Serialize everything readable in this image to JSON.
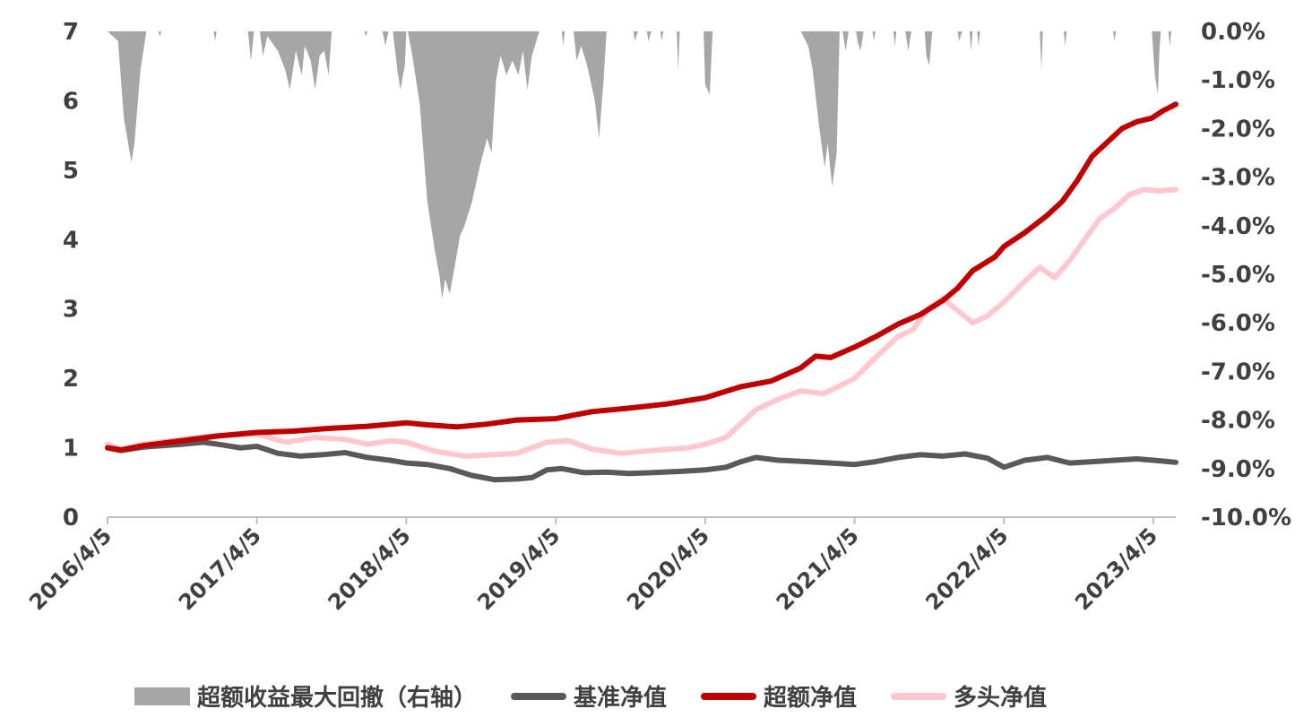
{
  "chart_data": {
    "type": "line",
    "x_ticks": [
      "2016/4/5",
      "2017/4/5",
      "2018/4/5",
      "2019/4/5",
      "2020/4/5",
      "2021/4/5",
      "2022/4/5",
      "2023/4/5"
    ],
    "x_range": [
      2016.26,
      2023.41
    ],
    "left_axis": {
      "ticks": [
        "0",
        "1",
        "2",
        "3",
        "4",
        "5",
        "6",
        "7"
      ],
      "range": [
        0,
        7
      ]
    },
    "right_axis": {
      "ticks": [
        "0.0%",
        "-1.0%",
        "-2.0%",
        "-3.0%",
        "-4.0%",
        "-5.0%",
        "-6.0%",
        "-7.0%",
        "-8.0%",
        "-9.0%",
        "-10.0%"
      ],
      "range": [
        -10,
        0
      ]
    },
    "legend_position": "bottom",
    "series": [
      {
        "name": "超额收益最大回撤（右轴）",
        "type": "area",
        "axis": "right",
        "color": "#a6a6a6",
        "points": [
          [
            2016.26,
            0
          ],
          [
            2016.33,
            -0.2
          ],
          [
            2016.37,
            -1.8
          ],
          [
            2016.42,
            -2.7
          ],
          [
            2016.44,
            -2.3
          ],
          [
            2016.48,
            -0.8
          ],
          [
            2016.52,
            0
          ],
          [
            2016.6,
            0
          ],
          [
            2016.61,
            -0.1
          ],
          [
            2016.62,
            0
          ],
          [
            2016.97,
            0
          ],
          [
            2016.98,
            -0.2
          ],
          [
            2016.99,
            0
          ],
          [
            2017.2,
            0
          ],
          [
            2017.22,
            -0.6
          ],
          [
            2017.24,
            0
          ],
          [
            2017.28,
            0
          ],
          [
            2017.3,
            -0.5
          ],
          [
            2017.33,
            -0.1
          ],
          [
            2017.4,
            -0.4
          ],
          [
            2017.45,
            -0.8
          ],
          [
            2017.48,
            -1.2
          ],
          [
            2017.52,
            -0.4
          ],
          [
            2017.56,
            -0.9
          ],
          [
            2017.58,
            -0.3
          ],
          [
            2017.62,
            -0.6
          ],
          [
            2017.65,
            -1.2
          ],
          [
            2017.68,
            -0.5
          ],
          [
            2017.71,
            -0.4
          ],
          [
            2017.74,
            -0.9
          ],
          [
            2017.76,
            0
          ],
          [
            2017.98,
            0
          ],
          [
            2017.99,
            -0.1
          ],
          [
            2018.0,
            0
          ],
          [
            2018.1,
            0
          ],
          [
            2018.12,
            -0.3
          ],
          [
            2018.14,
            0
          ],
          [
            2018.17,
            0
          ],
          [
            2018.2,
            -0.8
          ],
          [
            2018.22,
            -1.2
          ],
          [
            2018.25,
            -0.7
          ],
          [
            2018.27,
            0
          ],
          [
            2018.26,
            0
          ],
          [
            2018.3,
            -0.5
          ],
          [
            2018.35,
            -1.5
          ],
          [
            2018.4,
            -3.5
          ],
          [
            2018.45,
            -4.5
          ],
          [
            2018.48,
            -5.0
          ],
          [
            2018.5,
            -5.5
          ],
          [
            2018.52,
            -5.1
          ],
          [
            2018.55,
            -5.4
          ],
          [
            2018.58,
            -4.9
          ],
          [
            2018.62,
            -4.2
          ],
          [
            2018.65,
            -4.0
          ],
          [
            2018.7,
            -3.5
          ],
          [
            2018.75,
            -2.8
          ],
          [
            2018.8,
            -2.2
          ],
          [
            2018.83,
            -2.5
          ],
          [
            2018.86,
            -1.0
          ],
          [
            2018.89,
            -0.5
          ],
          [
            2018.93,
            -0.9
          ],
          [
            2018.97,
            -0.6
          ],
          [
            2019.01,
            -0.9
          ],
          [
            2019.04,
            -0.4
          ],
          [
            2019.07,
            -1.2
          ],
          [
            2019.1,
            -0.5
          ],
          [
            2019.13,
            -0.2
          ],
          [
            2019.15,
            0
          ],
          [
            2019.3,
            0
          ],
          [
            2019.31,
            -0.3
          ],
          [
            2019.32,
            0
          ],
          [
            2019.38,
            0
          ],
          [
            2019.4,
            -0.6
          ],
          [
            2019.43,
            -0.3
          ],
          [
            2019.47,
            -0.7
          ],
          [
            2019.52,
            -1.4
          ],
          [
            2019.55,
            -2.2
          ],
          [
            2019.58,
            -1.0
          ],
          [
            2019.6,
            0
          ],
          [
            2019.78,
            0
          ],
          [
            2019.79,
            -0.2
          ],
          [
            2019.81,
            0
          ],
          [
            2019.87,
            0
          ],
          [
            2019.88,
            -0.2
          ],
          [
            2019.9,
            0
          ],
          [
            2019.96,
            0
          ],
          [
            2019.97,
            -0.2
          ],
          [
            2019.98,
            0
          ],
          [
            2020.07,
            0
          ],
          [
            2020.08,
            -0.8
          ],
          [
            2020.09,
            0
          ],
          [
            2020.25,
            0
          ],
          [
            2020.26,
            -1.1
          ],
          [
            2020.29,
            -1.3
          ],
          [
            2020.31,
            0
          ],
          [
            2020.9,
            0
          ],
          [
            2020.95,
            -0.3
          ],
          [
            2020.98,
            -0.8
          ],
          [
            2021.02,
            -1.9
          ],
          [
            2021.06,
            -2.8
          ],
          [
            2021.08,
            -2.3
          ],
          [
            2021.11,
            -3.2
          ],
          [
            2021.14,
            -2.5
          ],
          [
            2021.16,
            0
          ],
          [
            2021.18,
            0
          ],
          [
            2021.2,
            -0.4
          ],
          [
            2021.22,
            0
          ],
          [
            2021.27,
            0
          ],
          [
            2021.28,
            -0.2
          ],
          [
            2021.3,
            -0.4
          ],
          [
            2021.32,
            0
          ],
          [
            2021.38,
            0
          ],
          [
            2021.39,
            -0.2
          ],
          [
            2021.4,
            0
          ],
          [
            2021.52,
            0
          ],
          [
            2021.53,
            -0.3
          ],
          [
            2021.54,
            0
          ],
          [
            2021.6,
            0
          ],
          [
            2021.62,
            -0.4
          ],
          [
            2021.64,
            0
          ],
          [
            2021.73,
            0
          ],
          [
            2021.74,
            -0.5
          ],
          [
            2021.76,
            -0.7
          ],
          [
            2021.78,
            0
          ],
          [
            2021.95,
            0
          ],
          [
            2021.96,
            -0.2
          ],
          [
            2021.98,
            0
          ],
          [
            2022.03,
            0
          ],
          [
            2022.04,
            -0.4
          ],
          [
            2022.05,
            0
          ],
          [
            2022.08,
            0
          ],
          [
            2022.09,
            -0.3
          ],
          [
            2022.1,
            0
          ],
          [
            2022.5,
            0
          ],
          [
            2022.51,
            -0.8
          ],
          [
            2022.52,
            0
          ],
          [
            2022.66,
            0
          ],
          [
            2022.67,
            -0.3
          ],
          [
            2022.68,
            0
          ],
          [
            2022.99,
            0
          ],
          [
            2023.0,
            -0.2
          ],
          [
            2023.01,
            0
          ],
          [
            2023.25,
            0
          ],
          [
            2023.27,
            -0.9
          ],
          [
            2023.29,
            -1.3
          ],
          [
            2023.3,
            -0.4
          ],
          [
            2023.31,
            0
          ],
          [
            2023.36,
            0
          ],
          [
            2023.37,
            -0.3
          ],
          [
            2023.38,
            0
          ]
        ]
      },
      {
        "name": "基准净值",
        "type": "line",
        "axis": "left",
        "color": "#595959",
        "points": [
          [
            2016.26,
            1.0
          ],
          [
            2016.35,
            0.96
          ],
          [
            2016.5,
            1.01
          ],
          [
            2016.75,
            1.05
          ],
          [
            2016.9,
            1.08
          ],
          [
            2017.0,
            1.05
          ],
          [
            2017.15,
            1.0
          ],
          [
            2017.26,
            1.02
          ],
          [
            2017.4,
            0.92
          ],
          [
            2017.55,
            0.88
          ],
          [
            2017.7,
            0.9
          ],
          [
            2017.85,
            0.93
          ],
          [
            2018.0,
            0.86
          ],
          [
            2018.15,
            0.82
          ],
          [
            2018.26,
            0.78
          ],
          [
            2018.4,
            0.76
          ],
          [
            2018.55,
            0.7
          ],
          [
            2018.7,
            0.6
          ],
          [
            2018.85,
            0.54
          ],
          [
            2019.0,
            0.55
          ],
          [
            2019.1,
            0.57
          ],
          [
            2019.2,
            0.68
          ],
          [
            2019.3,
            0.7
          ],
          [
            2019.45,
            0.64
          ],
          [
            2019.6,
            0.65
          ],
          [
            2019.75,
            0.63
          ],
          [
            2019.9,
            0.64
          ],
          [
            2020.1,
            0.66
          ],
          [
            2020.26,
            0.68
          ],
          [
            2020.4,
            0.72
          ],
          [
            2020.5,
            0.8
          ],
          [
            2020.6,
            0.86
          ],
          [
            2020.75,
            0.82
          ],
          [
            2020.95,
            0.8
          ],
          [
            2021.1,
            0.78
          ],
          [
            2021.26,
            0.76
          ],
          [
            2021.4,
            0.8
          ],
          [
            2021.55,
            0.86
          ],
          [
            2021.7,
            0.9
          ],
          [
            2021.85,
            0.88
          ],
          [
            2022.0,
            0.91
          ],
          [
            2022.15,
            0.85
          ],
          [
            2022.26,
            0.72
          ],
          [
            2022.4,
            0.82
          ],
          [
            2022.55,
            0.86
          ],
          [
            2022.7,
            0.78
          ],
          [
            2022.85,
            0.8
          ],
          [
            2023.0,
            0.82
          ],
          [
            2023.15,
            0.84
          ],
          [
            2023.26,
            0.82
          ],
          [
            2023.41,
            0.79
          ]
        ]
      },
      {
        "name": "超额净值",
        "type": "line",
        "axis": "left",
        "color": "#c00000",
        "points": [
          [
            2016.26,
            1.0
          ],
          [
            2016.35,
            0.97
          ],
          [
            2016.5,
            1.03
          ],
          [
            2016.75,
            1.1
          ],
          [
            2017.0,
            1.17
          ],
          [
            2017.26,
            1.22
          ],
          [
            2017.5,
            1.24
          ],
          [
            2017.75,
            1.28
          ],
          [
            2018.0,
            1.31
          ],
          [
            2018.26,
            1.36
          ],
          [
            2018.4,
            1.33
          ],
          [
            2018.6,
            1.3
          ],
          [
            2018.8,
            1.34
          ],
          [
            2019.0,
            1.4
          ],
          [
            2019.26,
            1.42
          ],
          [
            2019.5,
            1.52
          ],
          [
            2019.75,
            1.57
          ],
          [
            2020.0,
            1.63
          ],
          [
            2020.26,
            1.72
          ],
          [
            2020.5,
            1.88
          ],
          [
            2020.7,
            1.96
          ],
          [
            2020.9,
            2.15
          ],
          [
            2021.0,
            2.32
          ],
          [
            2021.1,
            2.3
          ],
          [
            2021.26,
            2.45
          ],
          [
            2021.4,
            2.6
          ],
          [
            2021.55,
            2.78
          ],
          [
            2021.7,
            2.92
          ],
          [
            2021.85,
            3.12
          ],
          [
            2021.95,
            3.3
          ],
          [
            2022.05,
            3.55
          ],
          [
            2022.2,
            3.75
          ],
          [
            2022.26,
            3.9
          ],
          [
            2022.4,
            4.1
          ],
          [
            2022.55,
            4.35
          ],
          [
            2022.65,
            4.55
          ],
          [
            2022.75,
            4.85
          ],
          [
            2022.85,
            5.2
          ],
          [
            2022.95,
            5.4
          ],
          [
            2023.05,
            5.6
          ],
          [
            2023.15,
            5.7
          ],
          [
            2023.25,
            5.75
          ],
          [
            2023.32,
            5.85
          ],
          [
            2023.41,
            5.95
          ]
        ]
      },
      {
        "name": "多头净值",
        "type": "line",
        "axis": "left",
        "color": "#ffc7ce",
        "points": [
          [
            2016.26,
            1.05
          ],
          [
            2016.35,
            0.97
          ],
          [
            2016.5,
            1.05
          ],
          [
            2016.75,
            1.12
          ],
          [
            2017.0,
            1.18
          ],
          [
            2017.26,
            1.2
          ],
          [
            2017.45,
            1.08
          ],
          [
            2017.65,
            1.15
          ],
          [
            2017.85,
            1.12
          ],
          [
            2018.0,
            1.05
          ],
          [
            2018.15,
            1.1
          ],
          [
            2018.26,
            1.08
          ],
          [
            2018.45,
            0.95
          ],
          [
            2018.65,
            0.88
          ],
          [
            2018.85,
            0.9
          ],
          [
            2019.0,
            0.92
          ],
          [
            2019.2,
            1.08
          ],
          [
            2019.35,
            1.1
          ],
          [
            2019.5,
            0.98
          ],
          [
            2019.7,
            0.92
          ],
          [
            2019.9,
            0.96
          ],
          [
            2020.15,
            1.0
          ],
          [
            2020.26,
            1.05
          ],
          [
            2020.4,
            1.15
          ],
          [
            2020.5,
            1.35
          ],
          [
            2020.6,
            1.55
          ],
          [
            2020.75,
            1.7
          ],
          [
            2020.9,
            1.82
          ],
          [
            2021.05,
            1.78
          ],
          [
            2021.15,
            1.88
          ],
          [
            2021.26,
            2.0
          ],
          [
            2021.4,
            2.3
          ],
          [
            2021.55,
            2.6
          ],
          [
            2021.65,
            2.7
          ],
          [
            2021.75,
            3.0
          ],
          [
            2021.85,
            3.15
          ],
          [
            2021.95,
            2.98
          ],
          [
            2022.05,
            2.8
          ],
          [
            2022.15,
            2.9
          ],
          [
            2022.26,
            3.1
          ],
          [
            2022.4,
            3.4
          ],
          [
            2022.5,
            3.6
          ],
          [
            2022.6,
            3.45
          ],
          [
            2022.7,
            3.7
          ],
          [
            2022.8,
            4.0
          ],
          [
            2022.9,
            4.3
          ],
          [
            2023.0,
            4.45
          ],
          [
            2023.1,
            4.65
          ],
          [
            2023.2,
            4.72
          ],
          [
            2023.3,
            4.7
          ],
          [
            2023.41,
            4.72
          ]
        ]
      }
    ]
  }
}
